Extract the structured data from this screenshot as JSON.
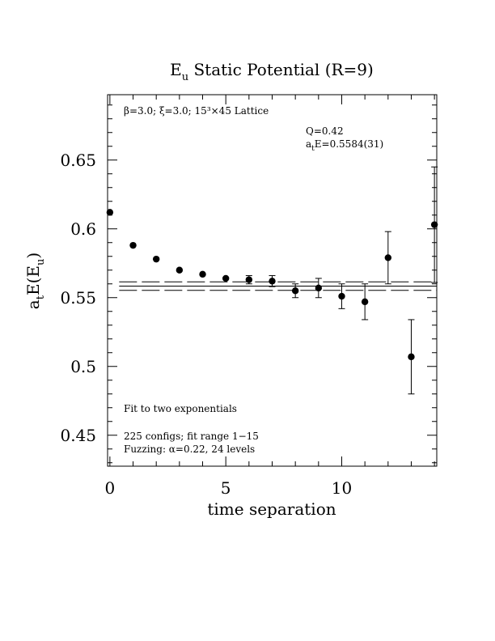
{
  "chart_data": {
    "type": "scatter",
    "title": {
      "main": "E",
      "sub": "u",
      "rest": " Static Potential (R=9)"
    },
    "xlabel": "time separation",
    "ylabel": {
      "a": "a",
      "t": "t",
      "e": "E(E",
      "u": "u",
      "close": ")"
    },
    "xlim": [
      -0.1,
      14.1
    ],
    "ylim": [
      0.4275,
      0.6975
    ],
    "xticks": [
      0,
      5,
      10
    ],
    "xtick_labels": [
      "0",
      "5",
      "10"
    ],
    "yticks": [
      0.45,
      0.5,
      0.55,
      0.6,
      0.65
    ],
    "ytick_labels": [
      "0.45",
      "0.5",
      "0.55",
      "0.6",
      "0.65"
    ],
    "grid": false,
    "points": [
      {
        "x": 0,
        "y": 0.612,
        "err": 0.0015
      },
      {
        "x": 1,
        "y": 0.588,
        "err": 0.0015
      },
      {
        "x": 2,
        "y": 0.578,
        "err": 0.0015
      },
      {
        "x": 3,
        "y": 0.57,
        "err": 0.0015
      },
      {
        "x": 4,
        "y": 0.567,
        "err": 0.0015
      },
      {
        "x": 5,
        "y": 0.564,
        "err": 0.002
      },
      {
        "x": 6,
        "y": 0.563,
        "err": 0.003
      },
      {
        "x": 7,
        "y": 0.562,
        "err": 0.004
      },
      {
        "x": 8,
        "y": 0.555,
        "err": 0.005
      },
      {
        "x": 9,
        "y": 0.557,
        "err": 0.007
      },
      {
        "x": 10,
        "y": 0.551,
        "err": 0.009
      },
      {
        "x": 11,
        "y": 0.547,
        "err": 0.013
      },
      {
        "x": 12,
        "y": 0.579,
        "err": 0.019
      },
      {
        "x": 13,
        "y": 0.507,
        "err": 0.027
      },
      {
        "x": 14,
        "y": 0.603,
        "err": 0.042
      }
    ],
    "fit": {
      "range": [
        1,
        15
      ],
      "central": 0.5584,
      "error": 0.0031
    },
    "annotations": {
      "lattice": {
        "beta": "β=3.0; ",
        "xi": "ξ=3.0; ",
        "size": "15³×45 Lattice"
      },
      "q": "Q=0.42",
      "energy": {
        "a": "a",
        "t": "t",
        "rest": "E=0.5584(31)"
      },
      "fit_desc": "Fit to two exponentials",
      "configs": "225 configs; fit range 1−15",
      "fuzzing": "Fuzzing: α=0.22, 24 levels"
    }
  }
}
